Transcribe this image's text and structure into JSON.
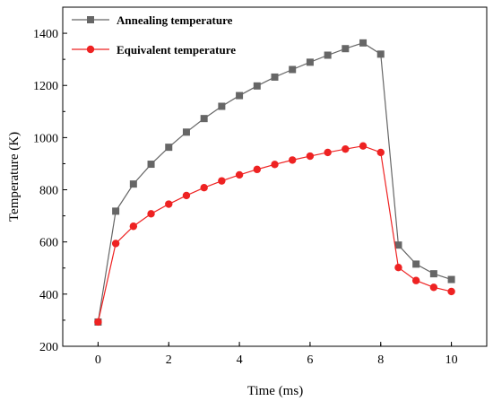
{
  "chart_data": {
    "type": "line",
    "title": "",
    "xlabel": "Time (ms)",
    "ylabel": "Temperature (K)",
    "xlim": [
      -1,
      11
    ],
    "ylim": [
      200,
      1500
    ],
    "xticks": [
      0,
      2,
      4,
      6,
      8,
      10
    ],
    "yticks": [
      200,
      400,
      600,
      800,
      1000,
      1200,
      1400
    ],
    "grid": false,
    "legend_position": "top-left",
    "x": [
      0,
      0.5,
      1,
      1.5,
      2,
      2.5,
      3,
      3.5,
      4,
      4.5,
      5,
      5.5,
      6,
      6.5,
      7,
      7.5,
      8,
      8.5,
      9,
      9.5,
      10
    ],
    "series": [
      {
        "name": "Annealing temperature",
        "color": "#666666",
        "marker": "square",
        "values": [
          293,
          718,
          822,
          898,
          963,
          1021,
          1073,
          1120,
          1161,
          1198,
          1232,
          1261,
          1289,
          1316,
          1341,
          1363,
          1320,
          588,
          515,
          478,
          456
        ]
      },
      {
        "name": "Equivalent temperature",
        "color": "#ee2222",
        "marker": "circle",
        "values": [
          293,
          594,
          660,
          708,
          745,
          778,
          808,
          834,
          857,
          878,
          897,
          914,
          929,
          943,
          956,
          968,
          943,
          502,
          452,
          426,
          410
        ]
      }
    ]
  }
}
